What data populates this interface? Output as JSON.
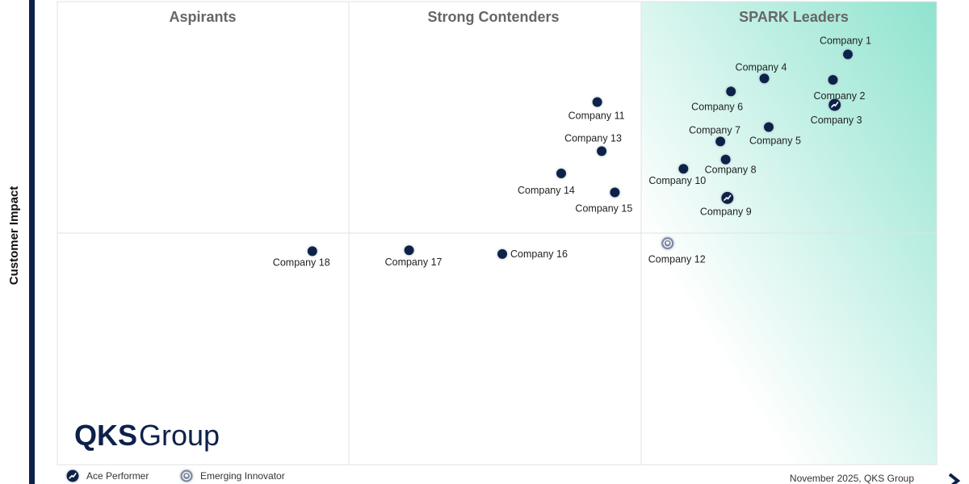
{
  "chart_data": {
    "type": "scatter",
    "ylabel": "Customer Impact",
    "xlabel": "",
    "quadrants": [
      "Aspirants",
      "Strong Contenders",
      "SPARK Leaders"
    ],
    "xlim": [
      0,
      100
    ],
    "ylim": [
      0,
      100
    ],
    "points": [
      {
        "label": "Company 1",
        "x": 89.9,
        "y": 88.6,
        "marker": "standard"
      },
      {
        "label": "Company 2",
        "x": 88.2,
        "y": 83.1,
        "marker": "standard"
      },
      {
        "label": "Company 3",
        "x": 88.4,
        "y": 77.7,
        "marker": "ace"
      },
      {
        "label": "Company 4",
        "x": 80.4,
        "y": 83.4,
        "marker": "standard"
      },
      {
        "label": "Company 5",
        "x": 80.9,
        "y": 72.9,
        "marker": "standard"
      },
      {
        "label": "Company 6",
        "x": 76.6,
        "y": 80.6,
        "marker": "standard"
      },
      {
        "label": "Company 7",
        "x": 75.4,
        "y": 69.8,
        "marker": "standard"
      },
      {
        "label": "Company 8",
        "x": 76.0,
        "y": 65.9,
        "marker": "standard"
      },
      {
        "label": "Company 9",
        "x": 76.2,
        "y": 57.6,
        "marker": "ace"
      },
      {
        "label": "Company 10",
        "x": 71.2,
        "y": 63.9,
        "marker": "standard"
      },
      {
        "label": "Company 11",
        "x": 61.4,
        "y": 78.3,
        "marker": "standard"
      },
      {
        "label": "Company 12",
        "x": 69.4,
        "y": 47.8,
        "marker": "innovator"
      },
      {
        "label": "Company 13",
        "x": 61.9,
        "y": 67.7,
        "marker": "standard"
      },
      {
        "label": "Company 14",
        "x": 57.3,
        "y": 62.9,
        "marker": "standard"
      },
      {
        "label": "Company 15",
        "x": 63.4,
        "y": 58.8,
        "marker": "standard"
      },
      {
        "label": "Company 16",
        "x": 50.6,
        "y": 45.5,
        "marker": "standard"
      },
      {
        "label": "Company 17",
        "x": 40.0,
        "y": 46.3,
        "marker": "standard"
      },
      {
        "label": "Company 18",
        "x": 29.0,
        "y": 46.1,
        "marker": "standard"
      }
    ],
    "legend": [
      {
        "label": "Ace Performer",
        "marker": "ace"
      },
      {
        "label": "Emerging Innovator",
        "marker": "innovator"
      }
    ],
    "legend_position": "bottom-left"
  },
  "brand": {
    "logo_bold": "QKS",
    "logo_light": "Group"
  },
  "footer": {
    "credit": "November 2025, QKS Group"
  },
  "colors": {
    "marker": "#0d2149",
    "frame": "#0d2149",
    "quadrant_title": "#666666",
    "leader_gradient": "#8fe3cf",
    "grid": "#e2e2e2"
  }
}
